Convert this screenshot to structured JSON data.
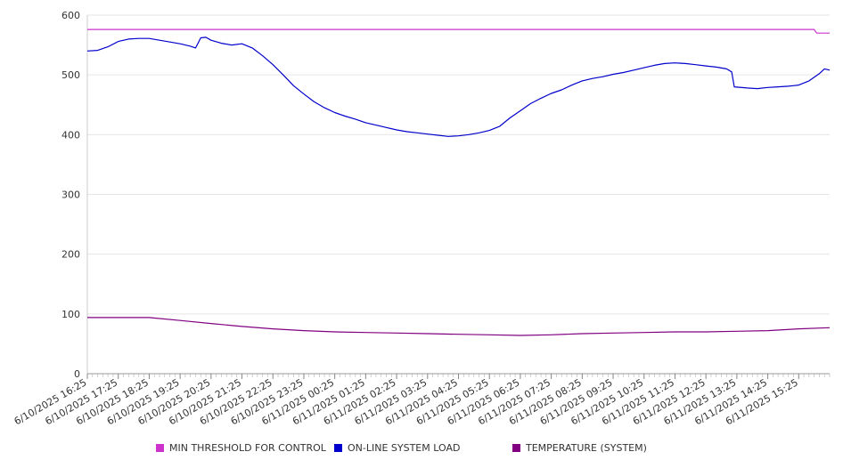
{
  "chart_data": {
    "type": "line",
    "title": "",
    "xlabel": "",
    "ylabel": "",
    "ylim": [
      0,
      600
    ],
    "yticks": [
      0,
      100,
      200,
      300,
      400,
      500,
      600
    ],
    "x_tick_labels": [
      "6/10/2025 16:25",
      "6/10/2025 17:25",
      "6/10/2025 18:25",
      "6/10/2025 19:25",
      "6/10/2025 20:25",
      "6/10/2025 21:25",
      "6/10/2025 22:25",
      "6/10/2025 23:25",
      "6/11/2025 00:25",
      "6/11/2025 01:25",
      "6/11/2025 02:25",
      "6/11/2025 03:25",
      "6/11/2025 04:25",
      "6/11/2025 05:25",
      "6/11/2025 06:25",
      "6/11/2025 07:25",
      "6/11/2025 08:25",
      "6/11/2025 09:25",
      "6/11/2025 10:25",
      "6/11/2025 11:25",
      "6/11/2025 12:25",
      "6/11/2025 13:25",
      "6/11/2025 14:25",
      "6/11/2025 15:25"
    ],
    "x_start": "6/10/2025 16:25",
    "x_end": "6/11/2025 16:25",
    "grid": true,
    "legend_position": "bottom",
    "series": [
      {
        "name": "MIN THRESHOLD FOR CONTROL",
        "color": "#cc33cc",
        "points": [
          [
            "6/10/2025 16:25",
            576
          ],
          [
            "6/11/2025 15:55",
            576
          ],
          [
            "6/11/2025 16:00",
            570
          ],
          [
            "6/11/2025 16:25",
            570
          ]
        ]
      },
      {
        "name": "ON-LINE SYSTEM LOAD",
        "color": "#0000cc",
        "points": [
          [
            "6/10/2025 16:25",
            540
          ],
          [
            "6/10/2025 16:45",
            541
          ],
          [
            "6/10/2025 17:05",
            547
          ],
          [
            "6/10/2025 17:25",
            556
          ],
          [
            "6/10/2025 17:45",
            560
          ],
          [
            "6/10/2025 18:05",
            561
          ],
          [
            "6/10/2025 18:25",
            561
          ],
          [
            "6/10/2025 18:45",
            558
          ],
          [
            "6/10/2025 19:05",
            555
          ],
          [
            "6/10/2025 19:25",
            552
          ],
          [
            "6/10/2025 19:45",
            548
          ],
          [
            "6/10/2025 19:55",
            545
          ],
          [
            "6/10/2025 20:05",
            562
          ],
          [
            "6/10/2025 20:15",
            563
          ],
          [
            "6/10/2025 20:25",
            558
          ],
          [
            "6/10/2025 20:45",
            553
          ],
          [
            "6/10/2025 21:05",
            550
          ],
          [
            "6/10/2025 21:25",
            552
          ],
          [
            "6/10/2025 21:45",
            545
          ],
          [
            "6/10/2025 22:05",
            532
          ],
          [
            "6/10/2025 22:25",
            517
          ],
          [
            "6/10/2025 22:45",
            500
          ],
          [
            "6/10/2025 23:05",
            482
          ],
          [
            "6/10/2025 23:25",
            468
          ],
          [
            "6/10/2025 23:45",
            455
          ],
          [
            "6/11/2025 00:05",
            445
          ],
          [
            "6/11/2025 00:25",
            437
          ],
          [
            "6/11/2025 00:45",
            431
          ],
          [
            "6/11/2025 01:05",
            426
          ],
          [
            "6/11/2025 01:25",
            420
          ],
          [
            "6/11/2025 01:45",
            416
          ],
          [
            "6/11/2025 02:05",
            412
          ],
          [
            "6/11/2025 02:25",
            408
          ],
          [
            "6/11/2025 02:45",
            405
          ],
          [
            "6/11/2025 03:05",
            403
          ],
          [
            "6/11/2025 03:25",
            401
          ],
          [
            "6/11/2025 03:45",
            399
          ],
          [
            "6/11/2025 04:05",
            397
          ],
          [
            "6/11/2025 04:25",
            398
          ],
          [
            "6/11/2025 04:45",
            400
          ],
          [
            "6/11/2025 05:05",
            403
          ],
          [
            "6/11/2025 05:25",
            407
          ],
          [
            "6/11/2025 05:45",
            414
          ],
          [
            "6/11/2025 06:05",
            428
          ],
          [
            "6/11/2025 06:25",
            440
          ],
          [
            "6/11/2025 06:45",
            452
          ],
          [
            "6/11/2025 07:05",
            461
          ],
          [
            "6/11/2025 07:25",
            469
          ],
          [
            "6/11/2025 07:45",
            475
          ],
          [
            "6/11/2025 08:05",
            483
          ],
          [
            "6/11/2025 08:25",
            490
          ],
          [
            "6/11/2025 08:45",
            494
          ],
          [
            "6/11/2025 09:05",
            497
          ],
          [
            "6/11/2025 09:25",
            501
          ],
          [
            "6/11/2025 09:45",
            504
          ],
          [
            "6/11/2025 10:05",
            508
          ],
          [
            "6/11/2025 10:25",
            512
          ],
          [
            "6/11/2025 10:45",
            516
          ],
          [
            "6/11/2025 11:05",
            519
          ],
          [
            "6/11/2025 11:25",
            520
          ],
          [
            "6/11/2025 11:45",
            519
          ],
          [
            "6/11/2025 12:05",
            517
          ],
          [
            "6/11/2025 12:25",
            515
          ],
          [
            "6/11/2025 12:45",
            513
          ],
          [
            "6/11/2025 13:05",
            510
          ],
          [
            "6/11/2025 13:15",
            505
          ],
          [
            "6/11/2025 13:20",
            480
          ],
          [
            "6/11/2025 13:45",
            478
          ],
          [
            "6/11/2025 14:05",
            477
          ],
          [
            "6/11/2025 14:25",
            479
          ],
          [
            "6/11/2025 14:45",
            480
          ],
          [
            "6/11/2025 15:05",
            481
          ],
          [
            "6/11/2025 15:25",
            483
          ],
          [
            "6/11/2025 15:45",
            490
          ],
          [
            "6/11/2025 16:05",
            502
          ],
          [
            "6/11/2025 16:15",
            510
          ],
          [
            "6/11/2025 16:25",
            508
          ]
        ]
      },
      {
        "name": "TEMPERATURE (SYSTEM)",
        "color": "#800080",
        "points": [
          [
            "6/10/2025 16:25",
            94
          ],
          [
            "6/10/2025 17:25",
            94
          ],
          [
            "6/10/2025 18:25",
            94
          ],
          [
            "6/10/2025 19:25",
            89
          ],
          [
            "6/10/2025 20:25",
            84
          ],
          [
            "6/10/2025 21:25",
            79
          ],
          [
            "6/10/2025 22:25",
            75
          ],
          [
            "6/10/2025 23:25",
            72
          ],
          [
            "6/11/2025 00:25",
            70
          ],
          [
            "6/11/2025 01:25",
            69
          ],
          [
            "6/11/2025 02:25",
            68
          ],
          [
            "6/11/2025 03:25",
            67
          ],
          [
            "6/11/2025 04:25",
            66
          ],
          [
            "6/11/2025 05:25",
            65
          ],
          [
            "6/11/2025 06:25",
            64
          ],
          [
            "6/11/2025 07:25",
            65
          ],
          [
            "6/11/2025 08:25",
            67
          ],
          [
            "6/11/2025 09:25",
            68
          ],
          [
            "6/11/2025 10:25",
            69
          ],
          [
            "6/11/2025 11:25",
            70
          ],
          [
            "6/11/2025 12:25",
            70
          ],
          [
            "6/11/2025 13:25",
            71
          ],
          [
            "6/11/2025 14:25",
            72
          ],
          [
            "6/11/2025 15:25",
            75
          ],
          [
            "6/11/2025 16:25",
            77
          ]
        ]
      }
    ]
  }
}
